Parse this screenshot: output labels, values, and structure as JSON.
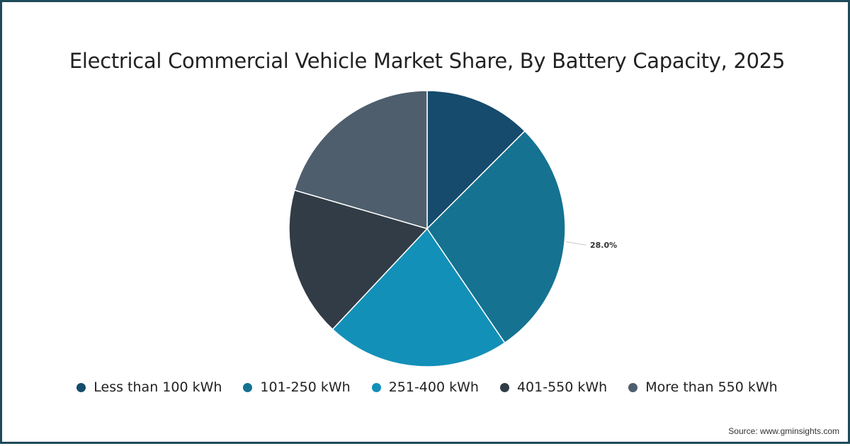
{
  "title": "Electrical Commercial Vehicle Market Share, By Battery Capacity, 2025",
  "source": "Source: www.gminsights.com",
  "chart_data": {
    "type": "pie",
    "title": "Electrical Commercial Vehicle Market Share, By Battery Capacity, 2025",
    "slices": [
      {
        "name": "Less than 100 kWh",
        "value": 12.5,
        "color": "#164b6d"
      },
      {
        "name": "101-250 kWh",
        "value": 28.0,
        "color": "#157291",
        "label": "28.0%"
      },
      {
        "name": "251-400 kWh",
        "value": 21.5,
        "color": "#1390b8"
      },
      {
        "name": "401-550 kWh",
        "value": 17.5,
        "color": "#313c46"
      },
      {
        "name": "More than 550 kWh",
        "value": 20.5,
        "color": "#4e5e6c"
      }
    ],
    "legend_position": "bottom"
  }
}
